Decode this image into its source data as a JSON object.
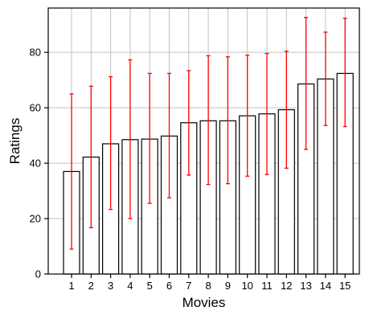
{
  "chart_data": {
    "type": "bar",
    "title": "",
    "xlabel": "Movies",
    "ylabel": "Ratings",
    "categories": [
      "1",
      "2",
      "3",
      "4",
      "5",
      "6",
      "7",
      "8",
      "9",
      "10",
      "11",
      "12",
      "13",
      "14",
      "15"
    ],
    "values": [
      37.0,
      42.2,
      47.0,
      48.5,
      48.7,
      49.8,
      54.6,
      55.3,
      55.3,
      57.1,
      57.8,
      59.3,
      68.6,
      70.4,
      72.4
    ],
    "error_upper": [
      65.0,
      67.8,
      71.2,
      77.3,
      72.4,
      72.4,
      73.4,
      78.8,
      78.4,
      79.0,
      79.6,
      80.4,
      92.6,
      87.3,
      92.3
    ],
    "error_lower": [
      9.0,
      16.7,
      23.3,
      20.0,
      25.5,
      27.5,
      35.7,
      32.3,
      32.6,
      35.3,
      35.9,
      38.2,
      45.0,
      53.6,
      53.2
    ],
    "ylim": [
      0,
      96
    ],
    "yticks": [
      0,
      20,
      40,
      60,
      80
    ],
    "grid": true,
    "legend": "none",
    "colors": {
      "bar_fill": "#ffffff",
      "bar_edge": "#000000",
      "error_bar": "#ff0000",
      "grid": "#c0c0c0",
      "axis": "#000000"
    }
  }
}
